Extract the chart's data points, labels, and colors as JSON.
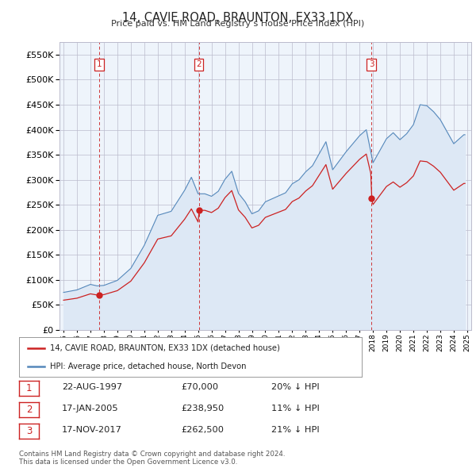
{
  "title": "14, CAVIE ROAD, BRAUNTON, EX33 1DX",
  "subtitle": "Price paid vs. HM Land Registry’s House Price Index (HPI)",
  "hpi_label": "HPI: Average price, detached house, North Devon",
  "price_label": "14, CAVIE ROAD, BRAUNTON, EX33 1DX (detached house)",
  "hpi_color": "#5588bb",
  "hpi_fill": "#dde8f5",
  "price_color": "#cc2222",
  "plot_bg": "#eef4fb",
  "outer_bg": "#ffffff",
  "ylim": [
    0,
    575000
  ],
  "yticks": [
    0,
    50000,
    100000,
    150000,
    200000,
    250000,
    300000,
    350000,
    400000,
    450000,
    500000,
    550000
  ],
  "xlim_start": 1994.7,
  "xlim_end": 2025.3,
  "transactions": [
    {
      "label": "1",
      "date": "22-AUG-1997",
      "price": 70000,
      "year": 1997.64,
      "pct": "20%",
      "dir": "↓"
    },
    {
      "label": "2",
      "date": "17-JAN-2005",
      "price": 238950,
      "year": 2005.05,
      "pct": "11%",
      "dir": "↓"
    },
    {
      "label": "3",
      "date": "17-NOV-2017",
      "price": 262500,
      "year": 2017.88,
      "pct": "21%",
      "dir": "↓"
    }
  ],
  "footer": "Contains HM Land Registry data © Crown copyright and database right 2024.\nThis data is licensed under the Open Government Licence v3.0."
}
